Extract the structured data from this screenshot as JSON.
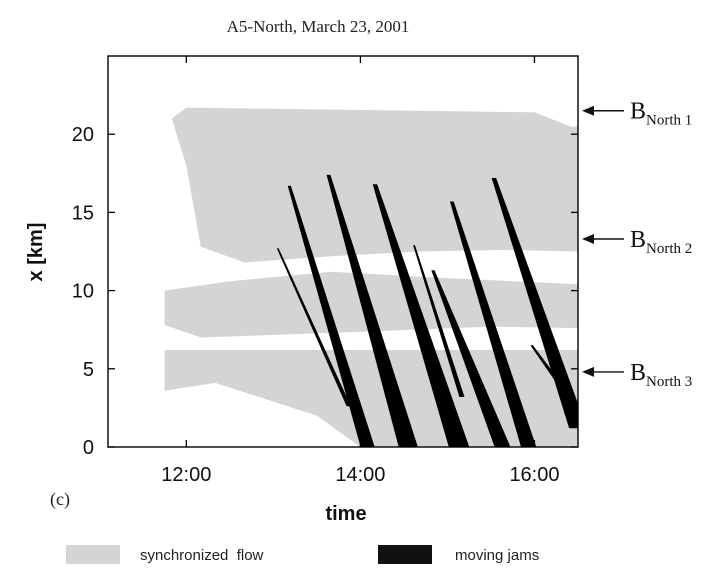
{
  "chart_data": {
    "type": "heatmap",
    "title": "A5-North, March 23, 2001",
    "panel_label": "(c)",
    "xlabel": "time",
    "ylabel": "x [km]",
    "xlim": [
      "11:06",
      "16:30"
    ],
    "ylim": [
      0,
      25
    ],
    "x_ticks": [
      "12:00",
      "14:00",
      "16:00"
    ],
    "y_ticks": [
      0,
      5,
      10,
      15,
      20
    ],
    "grid": false,
    "colors": {
      "synchronized": "#d4d4d4",
      "jams": "#000000",
      "axis": "#000000"
    },
    "legend": {
      "placement": "bottom",
      "entries": [
        {
          "label": "synchronized  flow",
          "color": "#d4d4d4"
        },
        {
          "label": "moving jams",
          "color": "#111111"
        }
      ]
    },
    "bottleneck_labels": [
      {
        "base": "B",
        "sub": "North 1",
        "x_km": 21.5
      },
      {
        "base": "B",
        "sub": "North 2",
        "x_km": 13.3
      },
      {
        "base": "B",
        "sub": "North 3",
        "x_km": 4.8
      }
    ],
    "synchronized_regions": [
      {
        "name": "upper-sync-region",
        "points": [
          [
            "12:00",
            21.7
          ],
          [
            "16:00",
            21.4
          ],
          [
            "16:30",
            20.3
          ],
          [
            "16:30",
            12.5
          ],
          [
            "15:40",
            12.6
          ],
          [
            "14:40",
            12.5
          ],
          [
            "13:40",
            12.2
          ],
          [
            "12:40",
            11.8
          ],
          [
            "12:10",
            12.8
          ],
          [
            "12:00",
            18.0
          ],
          [
            "11:50",
            21.0
          ]
        ]
      },
      {
        "name": "upper-right-sync-patch",
        "points": [
          [
            "15:40",
            20.3
          ],
          [
            "16:30",
            20.5
          ],
          [
            "16:30",
            17.5
          ],
          [
            "15:55",
            17.4
          ]
        ]
      },
      {
        "name": "middle-sync-region",
        "points": [
          [
            "11:45",
            10.0
          ],
          [
            "12:30",
            10.6
          ],
          [
            "13:40",
            11.2
          ],
          [
            "15:00",
            10.8
          ],
          [
            "16:30",
            10.4
          ],
          [
            "16:30",
            7.6
          ],
          [
            "15:30",
            7.7
          ],
          [
            "14:10",
            7.4
          ],
          [
            "13:10",
            7.2
          ],
          [
            "12:10",
            7.0
          ],
          [
            "11:45",
            7.8
          ]
        ]
      },
      {
        "name": "lower-sync-region",
        "points": [
          [
            "11:45",
            6.2
          ],
          [
            "13:00",
            6.2
          ],
          [
            "16:30",
            6.2
          ],
          [
            "16:30",
            0.0
          ],
          [
            "14:00",
            0.0
          ],
          [
            "13:30",
            2.0
          ],
          [
            "12:20",
            4.1
          ],
          [
            "11:45",
            3.6
          ]
        ]
      }
    ],
    "jam_lines": [
      {
        "start": [
          "13:03",
          12.7
        ],
        "end": [
          "13:52",
          2.6
        ],
        "w_start": 0.3,
        "w_end": 0.7
      },
      {
        "start": [
          "13:11",
          16.7
        ],
        "end": [
          "14:05",
          0.0
        ],
        "w_start": 0.5,
        "w_end": 2.2
      },
      {
        "start": [
          "13:38",
          17.4
        ],
        "end": [
          "14:33",
          0.0
        ],
        "w_start": 0.6,
        "w_end": 3.0
      },
      {
        "start": [
          "14:10",
          16.8
        ],
        "end": [
          "15:08",
          0.0
        ],
        "w_start": 0.7,
        "w_end": 3.2
      },
      {
        "start": [
          "14:50",
          11.3
        ],
        "end": [
          "15:38",
          0.0
        ],
        "w_start": 0.5,
        "w_end": 2.5
      },
      {
        "start": [
          "15:03",
          15.7
        ],
        "end": [
          "15:56",
          0.0
        ],
        "w_start": 0.6,
        "w_end": 2.4
      },
      {
        "start": [
          "15:32",
          17.2
        ],
        "end": [
          "16:30",
          1.2
        ],
        "w_start": 0.7,
        "w_end": 2.8
      },
      {
        "start": [
          "14:37",
          12.9
        ],
        "end": [
          "15:10",
          3.2
        ],
        "w_start": 0.3,
        "w_end": 0.8
      },
      {
        "start": [
          "15:58",
          6.5
        ],
        "end": [
          "16:30",
          2.4
        ],
        "w_start": 0.4,
        "w_end": 1.0
      }
    ]
  }
}
